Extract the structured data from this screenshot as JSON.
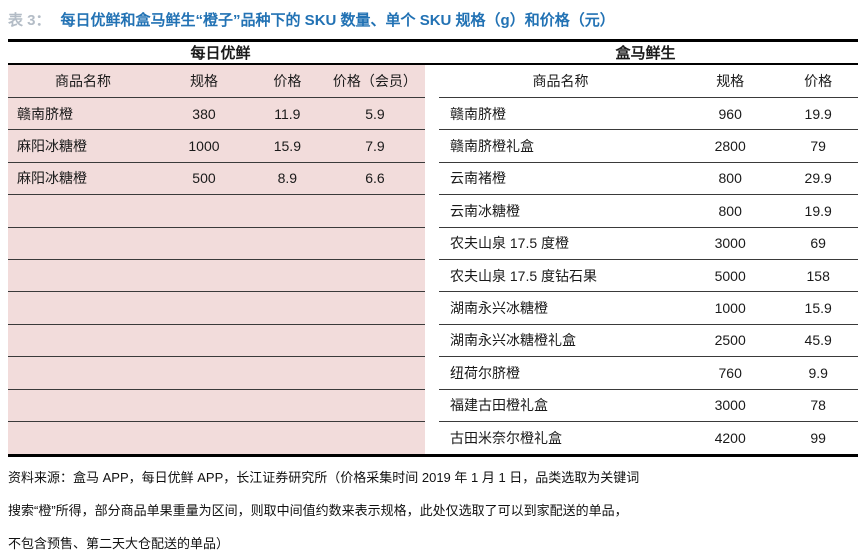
{
  "title": {
    "prefix": "表 3：",
    "text": "每日优鲜和盒马鲜生“橙子”品种下的 SKU 数量、单个 SKU 规格（g）和价格（元）"
  },
  "colors": {
    "title_blue": "#2272b4",
    "row_pink": "#f2dcdb",
    "border_dark": "#000000",
    "separator_gray": "#3a3a3a"
  },
  "left_table": {
    "group_header": "每日优鲜",
    "columns": [
      "商品名称",
      "规格",
      "价格",
      "价格（会员）"
    ],
    "rows": [
      [
        "赣南脐橙",
        "380",
        "11.9",
        "5.9"
      ],
      [
        "麻阳冰糖橙",
        "1000",
        "15.9",
        "7.9"
      ],
      [
        "麻阳冰糖橙",
        "500",
        "8.9",
        "6.6"
      ],
      [
        "",
        "",
        "",
        ""
      ],
      [
        "",
        "",
        "",
        ""
      ],
      [
        "",
        "",
        "",
        ""
      ],
      [
        "",
        "",
        "",
        ""
      ],
      [
        "",
        "",
        "",
        ""
      ],
      [
        "",
        "",
        "",
        ""
      ],
      [
        "",
        "",
        "",
        ""
      ],
      [
        "",
        "",
        "",
        ""
      ]
    ]
  },
  "right_table": {
    "group_header": "盒马鲜生",
    "columns": [
      "商品名称",
      "规格",
      "价格"
    ],
    "rows": [
      [
        "赣南脐橙",
        "960",
        "19.9"
      ],
      [
        "赣南脐橙礼盒",
        "2800",
        "79"
      ],
      [
        "云南褚橙",
        "800",
        "29.9"
      ],
      [
        "云南冰糖橙",
        "800",
        "19.9"
      ],
      [
        "农夫山泉 17.5 度橙",
        "3000",
        "69"
      ],
      [
        "农夫山泉 17.5 度钻石果",
        "5000",
        "158"
      ],
      [
        "湖南永兴冰糖橙",
        "1000",
        "15.9"
      ],
      [
        "湖南永兴冰糖橙礼盒",
        "2500",
        "45.9"
      ],
      [
        "纽荷尔脐橙",
        "760",
        "9.9"
      ],
      [
        "福建古田橙礼盒",
        "3000",
        "78"
      ],
      [
        "古田米奈尔橙礼盒",
        "4200",
        "99"
      ]
    ]
  },
  "footnote": {
    "lines": [
      "资料来源：盒马 APP，每日优鲜 APP，长江证券研究所（价格采集时间 2019 年 1 月 1 日，品类选取为关键词",
      "搜索“橙”所得，部分商品单果重量为区间，则取中间值约数来表示规格，此处仅选取了可以到家配送的单品，",
      "不包含预售、第二天大仓配送的单品）"
    ]
  }
}
